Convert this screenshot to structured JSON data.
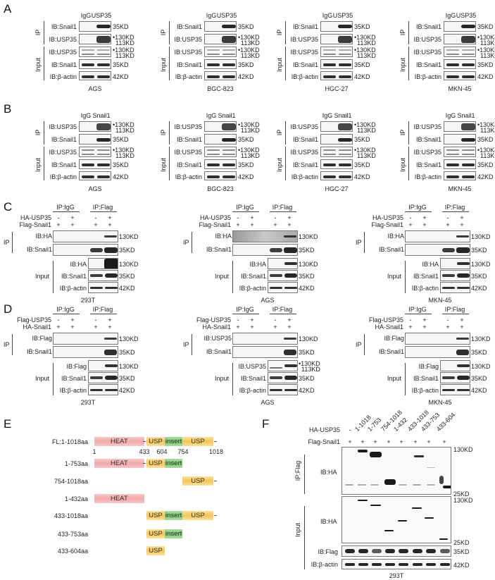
{
  "panels": {
    "A": {
      "letter": "A",
      "lanes": [
        "IgG",
        "USP35"
      ],
      "ip_label": "IP",
      "input_label": "Input",
      "rows": [
        {
          "ib": "IB:Snail1",
          "mw": "35KD"
        },
        {
          "ib": "IB:USP35",
          "mw": "•130KD",
          "mw2": "113KD"
        },
        {
          "ib": "IB:USP35",
          "mw": "•130KD",
          "mw2": "113KD"
        },
        {
          "ib": "IB:Snail1",
          "mw": "35KD"
        },
        {
          "ib": "IB:β-actin",
          "mw": "42KD"
        }
      ],
      "cell_lines": [
        "AGS",
        "BGC-823",
        "HGC-27",
        "MKN-45"
      ]
    },
    "B": {
      "letter": "B",
      "lanes": [
        "IgG",
        "Snail1"
      ],
      "ip_label": "IP",
      "input_label": "Input",
      "rows": [
        {
          "ib": "IB:USP35",
          "mw": "•130KD",
          "mw2": "113KD"
        },
        {
          "ib": "IB:Snail1",
          "mw": "35KD"
        },
        {
          "ib": "IB:USP35",
          "mw": "•130KD",
          "mw2": "113KD"
        },
        {
          "ib": "IB:Snail1",
          "mw": "35KD"
        },
        {
          "ib": "IB:β-actin",
          "mw": "42KD"
        }
      ],
      "cell_lines": [
        "AGS",
        "BGC-823",
        "HGC-27",
        "MKN-45"
      ]
    },
    "C": {
      "letter": "C",
      "group_labels": [
        "IP:IgG",
        "IP:Flag"
      ],
      "conditions": [
        {
          "name": "HA-USP35",
          "values": [
            "-",
            "+",
            "-",
            "+"
          ]
        },
        {
          "name": "Flag-Snail1",
          "values": [
            "+",
            "+",
            "+",
            "+"
          ]
        }
      ],
      "ip_label": "IP",
      "input_label": "Input",
      "ip_rows": [
        {
          "ib": "IB:HA",
          "mw": "130KD"
        },
        {
          "ib": "IB:Snail1",
          "mw": "35KD"
        }
      ],
      "input_rows": [
        {
          "ib": "IB:HA",
          "mw": "130KD"
        },
        {
          "ib": "IB:Snail1",
          "mw": "35KD"
        },
        {
          "ib": "IB:β-actin",
          "mw": "42KD"
        }
      ],
      "cell_lines": [
        "293T",
        "AGS",
        "MKN-45"
      ]
    },
    "D": {
      "letter": "D",
      "group_labels": [
        "IP:IgG",
        "IP:Flag"
      ],
      "conditions": [
        {
          "name": "Flag-USP35",
          "values": [
            "-",
            "+",
            "-",
            "+"
          ]
        },
        {
          "name": "HA-Snail1",
          "values": [
            "+",
            "+",
            "+",
            "+"
          ]
        }
      ],
      "ip_label": "IP",
      "input_label": "Input",
      "blocks": [
        {
          "cell_line": "293T",
          "ip_rows": [
            {
              "ib": "IB:Flag",
              "mw": "130KD"
            },
            {
              "ib": "IB:Snail1",
              "mw": "35KD"
            }
          ],
          "input_rows": [
            {
              "ib": "IB:Flag",
              "mw": "130KD"
            },
            {
              "ib": "IB:Snail1",
              "mw": "35KD"
            },
            {
              "ib": "IB:β-actin",
              "mw": "42KD"
            }
          ]
        },
        {
          "cell_line": "AGS",
          "ip_rows": [
            {
              "ib": "IB:USP35",
              "mw": "130KD"
            },
            {
              "ib": "IB:Snail1",
              "mw": "35KD"
            }
          ],
          "input_rows": [
            {
              "ib": "IB:USP35",
              "mw": "•130KD",
              "mw2": "113KD"
            },
            {
              "ib": "IB:Snail1",
              "mw": "35KD"
            },
            {
              "ib": "IB:β-actin",
              "mw": "42KD"
            }
          ]
        },
        {
          "cell_line": "MKN-45",
          "ip_rows": [
            {
              "ib": "IB:Flag",
              "mw": "130KD"
            },
            {
              "ib": "IB:Snail1",
              "mw": "35KD"
            }
          ],
          "input_rows": [
            {
              "ib": "IB:Flag",
              "mw": "130KD"
            },
            {
              "ib": "IB:Snail1",
              "mw": "35KD"
            },
            {
              "ib": "IB:β-actin",
              "mw": "42KD"
            }
          ]
        }
      ]
    },
    "E": {
      "letter": "E",
      "constructs": [
        {
          "label": "FL:1-1018aa",
          "domains": [
            {
              "t": "HEAT",
              "s": 1,
              "e": 432,
              "k": "heat"
            },
            {
              "t": "USP",
              "s": 433,
              "e": 604,
              "k": "usp"
            },
            {
              "t": "insert",
              "s": 604,
              "e": 754,
              "k": "ins"
            },
            {
              "t": "USP",
              "s": 754,
              "e": 1018,
              "k": "usp"
            }
          ]
        },
        {
          "label": "1-753aa",
          "domains": [
            {
              "t": "HEAT",
              "s": 1,
              "e": 432,
              "k": "heat"
            },
            {
              "t": "USP",
              "s": 433,
              "e": 604,
              "k": "usp"
            },
            {
              "t": "insert",
              "s": 604,
              "e": 754,
              "k": "ins"
            }
          ]
        },
        {
          "label": "754-1018aa",
          "domains": [
            {
              "t": "USP",
              "s": 754,
              "e": 1018,
              "k": "usp"
            }
          ]
        },
        {
          "label": "1-432aa",
          "domains": [
            {
              "t": "HEAT",
              "s": 1,
              "e": 432,
              "k": "heat"
            }
          ]
        },
        {
          "label": "433-1018aa",
          "domains": [
            {
              "t": "USP",
              "s": 433,
              "e": 604,
              "k": "usp"
            },
            {
              "t": "insert",
              "s": 604,
              "e": 754,
              "k": "ins"
            },
            {
              "t": "USP",
              "s": 754,
              "e": 1018,
              "k": "usp"
            }
          ]
        },
        {
          "label": "433-753aa",
          "domains": [
            {
              "t": "USP",
              "s": 433,
              "e": 604,
              "k": "usp"
            },
            {
              "t": "insert",
              "s": 604,
              "e": 754,
              "k": "ins"
            }
          ]
        },
        {
          "label": "433-604aa",
          "domains": [
            {
              "t": "USP",
              "s": 433,
              "e": 604,
              "k": "usp"
            }
          ]
        }
      ],
      "positions": [
        "1",
        "433",
        "604",
        "754",
        "1018"
      ]
    },
    "F": {
      "letter": "F",
      "conditions": [
        {
          "name": "HA-USP35",
          "values": [
            "-",
            "1-1018",
            "1-753",
            "754-1018",
            "1-432",
            "433-1018",
            "433-753",
            "433-604"
          ]
        },
        {
          "name": "Flag-Snail1",
          "values": [
            "+",
            "+",
            "+",
            "+",
            "+",
            "+",
            "+",
            "+"
          ]
        }
      ],
      "ip_label": "IP:Flag",
      "input_label": "Input",
      "rows": [
        {
          "ib": "IB:HA",
          "mw_top": "130KD",
          "mw_bottom": "25KD"
        },
        {
          "ib": "IB:HA",
          "mw_top": "130KD",
          "mw_bottom": "25KD"
        },
        {
          "ib": "IB:Flag",
          "mw": "35KD"
        },
        {
          "ib": "IB:β-actin",
          "mw": "42KD"
        }
      ],
      "cell_line": "293T"
    }
  },
  "colors": {
    "heat": "#f2aaaa",
    "usp": "#f5c45a",
    "insert": "#7cc772",
    "band": "#1a1a1a"
  }
}
